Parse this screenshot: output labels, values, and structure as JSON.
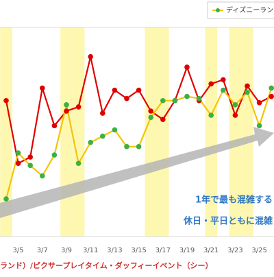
{
  "chart_data": {
    "type": "line",
    "categories": [
      null,
      "3/5",
      null,
      "3/7",
      null,
      "3/9",
      null,
      "3/11",
      null,
      "3/13",
      null,
      "3/15",
      null,
      "3/17",
      null,
      "3/19",
      null,
      "3/21",
      null,
      "3/23",
      null,
      "3/25",
      null
    ],
    "ylim": [
      0,
      100
    ],
    "shaded": [
      0,
      5,
      6,
      12,
      13,
      17,
      19,
      20
    ],
    "shade_color": "#fdf7b0",
    "series": [
      {
        "color": "#e00000",
        "marker_color": "#e00000",
        "values": [
          65,
          35,
          38,
          71,
          53,
          60,
          62,
          86,
          59,
          70,
          66,
          70,
          60,
          56,
          65,
          81,
          65,
          73,
          75,
          58,
          72,
          64,
          67
        ]
      },
      {
        "name": "ディズニーランド",
        "color": "#f5c400",
        "marker_color": "#3cb043",
        "values": [
          18,
          40,
          34,
          29,
          39,
          63,
          35,
          45,
          48,
          51,
          43,
          43,
          57,
          65,
          65,
          67,
          66,
          58,
          70,
          63,
          69,
          53,
          71
        ]
      }
    ],
    "annotations": [
      "1年で最も混雑する",
      "休日・平日ともに混雑"
    ],
    "footer": "ランド）/ピクサープレイタイム・ダッフィーイベント（シー）"
  }
}
